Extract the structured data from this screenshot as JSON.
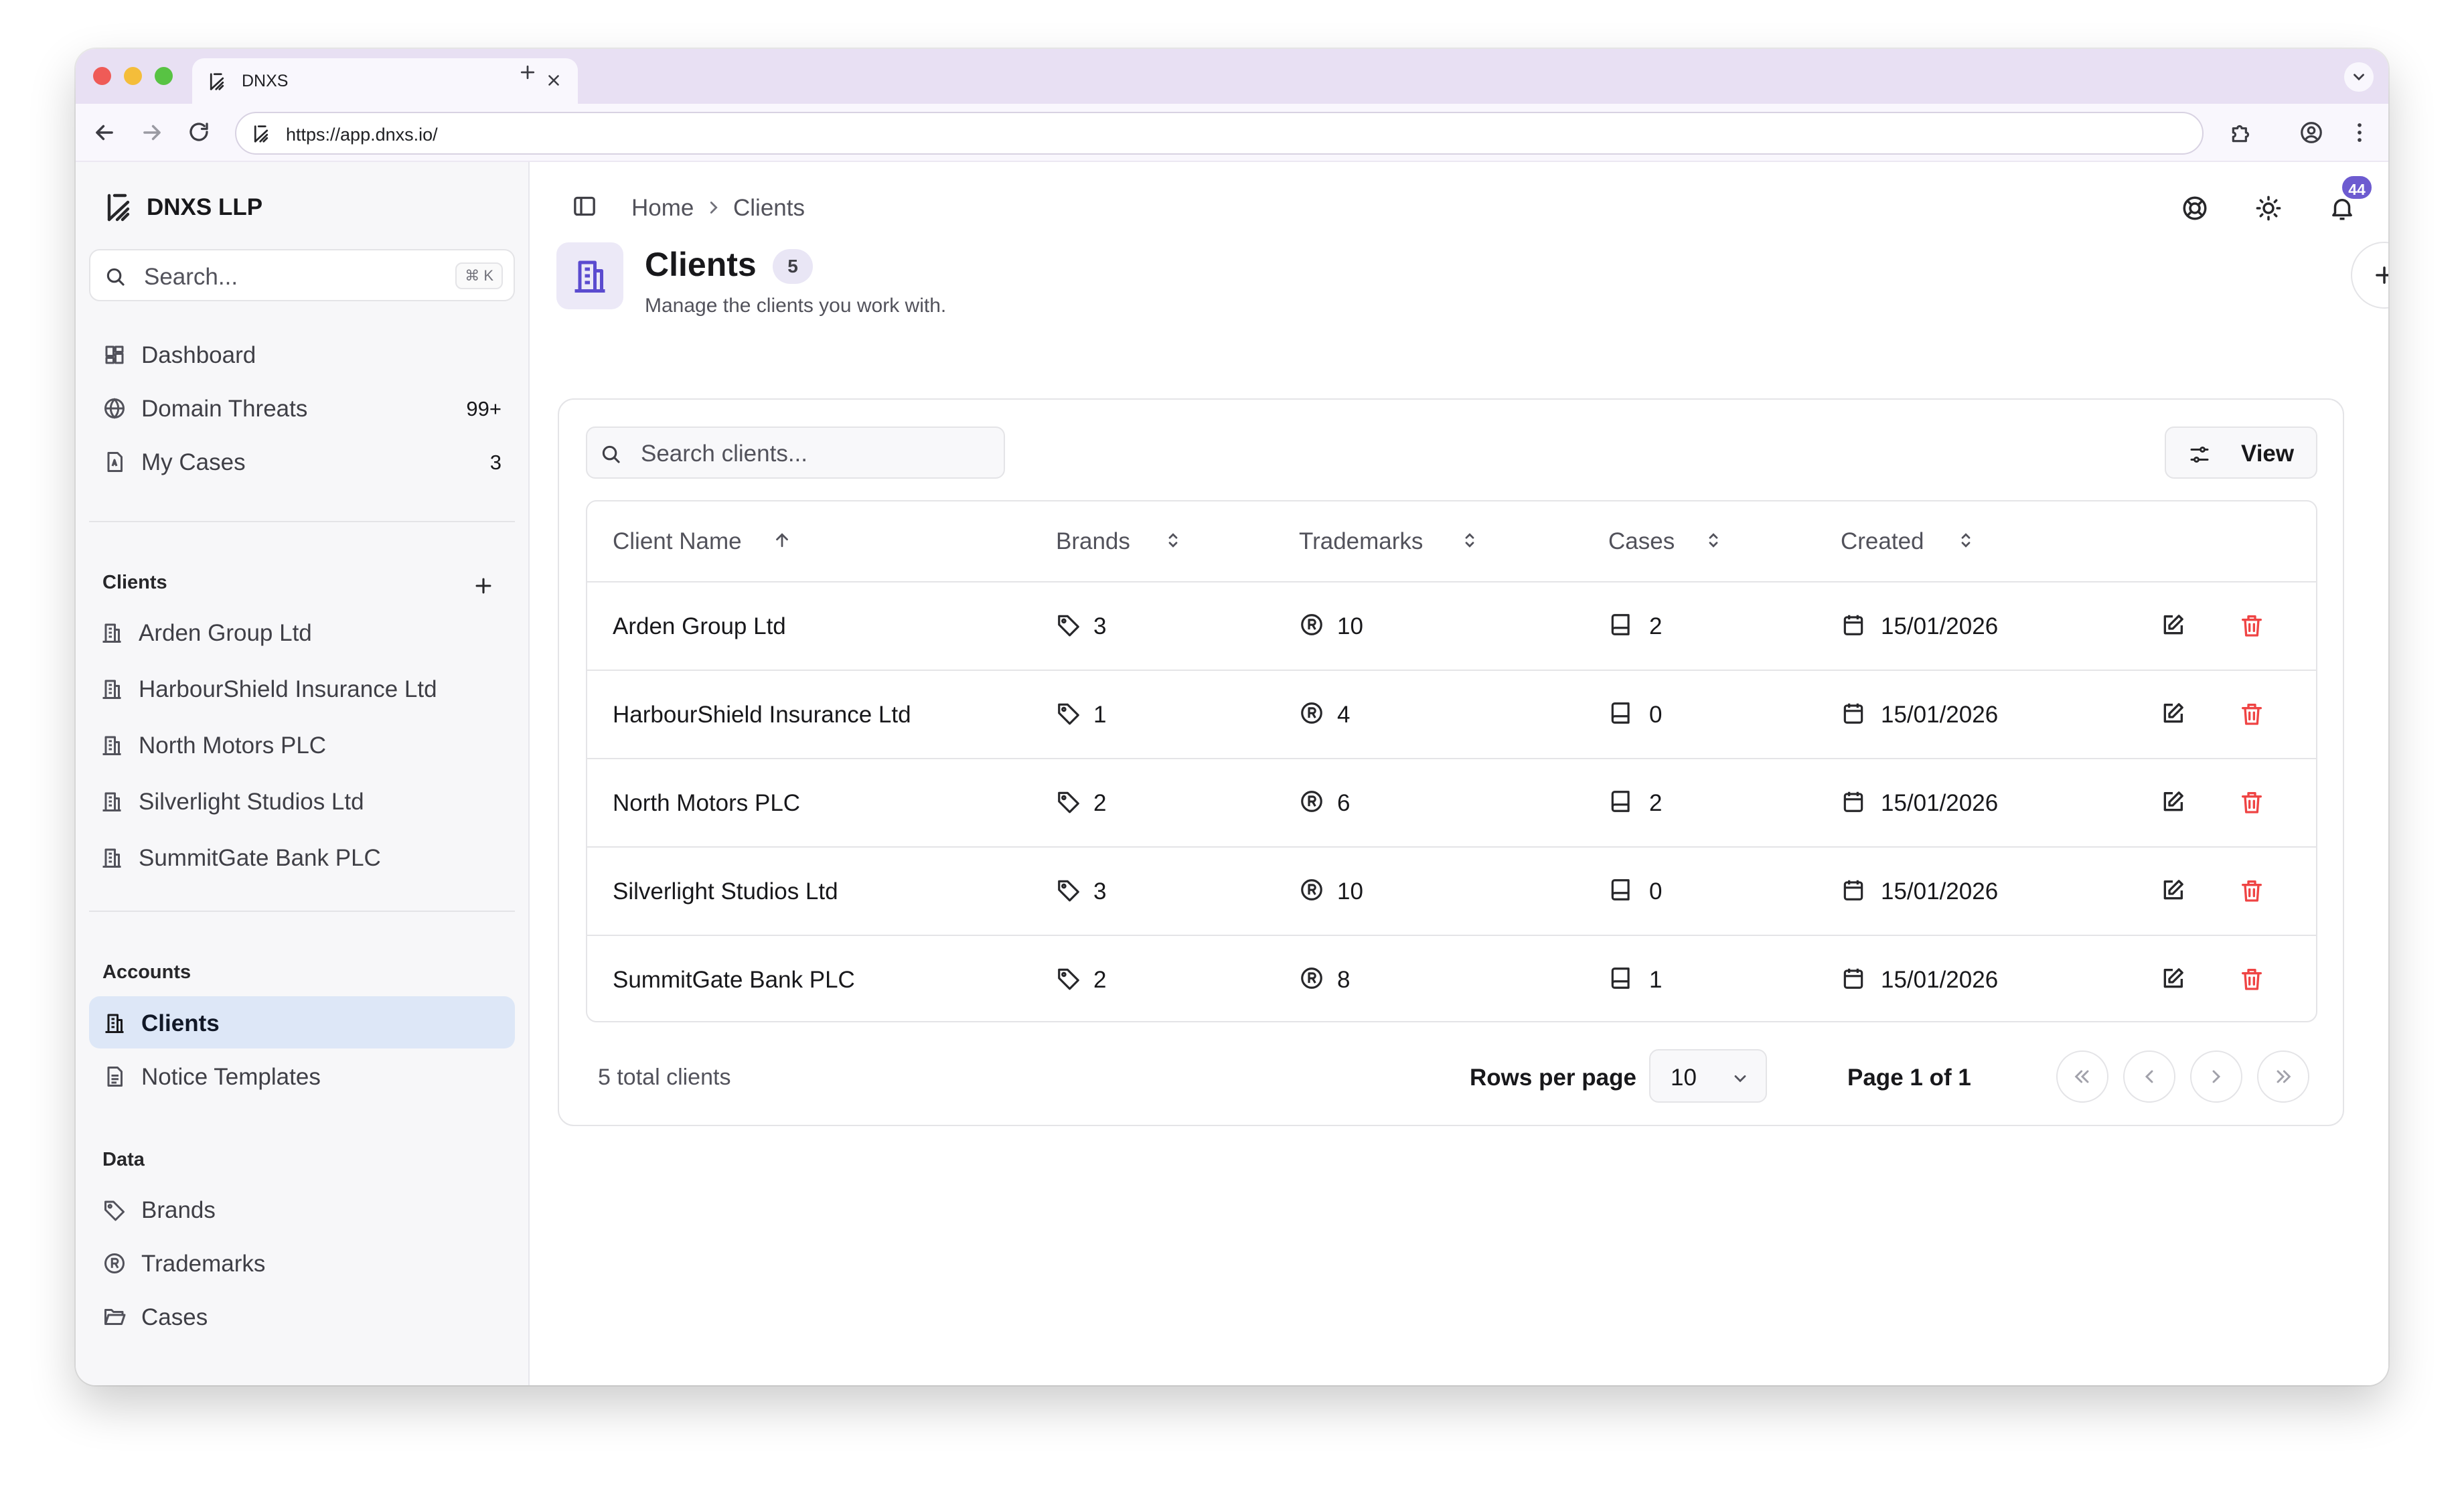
{
  "browser": {
    "tab_title": "DNXS",
    "url": "https://app.dnxs.io/"
  },
  "sidebar": {
    "org_name": "DNXS LLP",
    "search_placeholder": "Search...",
    "search_shortcut": "⌘ K",
    "nav": [
      {
        "label": "Dashboard",
        "icon": "dashboard-icon",
        "count": ""
      },
      {
        "label": "Domain Threats",
        "icon": "globe-icon",
        "count": "99+"
      },
      {
        "label": "My Cases",
        "icon": "case-file-icon",
        "count": "3"
      }
    ],
    "clients_heading": "Clients",
    "clients": [
      "Arden Group Ltd",
      "HarbourShield Insurance Ltd",
      "North Motors PLC",
      "Silverlight Studios Ltd",
      "SummitGate Bank PLC"
    ],
    "accounts_heading": "Accounts",
    "accounts": [
      {
        "label": "Clients",
        "icon": "building-icon",
        "active": true
      },
      {
        "label": "Notice Templates",
        "icon": "document-icon",
        "active": false
      }
    ],
    "data_heading": "Data",
    "data_items": [
      {
        "label": "Brands",
        "icon": "tag-icon"
      },
      {
        "label": "Trademarks",
        "icon": "registered-icon"
      },
      {
        "label": "Cases",
        "icon": "folder-icon"
      }
    ]
  },
  "breadcrumb": {
    "home": "Home",
    "current": "Clients"
  },
  "notifications": {
    "count": "44"
  },
  "page": {
    "title": "Clients",
    "count": "5",
    "subtitle": "Manage the clients you work with."
  },
  "toolbar": {
    "search_placeholder": "Search clients...",
    "view_label": "View"
  },
  "table": {
    "columns": [
      "Client Name",
      "Brands",
      "Trademarks",
      "Cases",
      "Created"
    ],
    "rows": [
      {
        "name": "Arden Group Ltd",
        "brands": "3",
        "trademarks": "10",
        "cases": "2",
        "created": "15/01/2026"
      },
      {
        "name": "HarbourShield Insurance Ltd",
        "brands": "1",
        "trademarks": "4",
        "cases": "0",
        "created": "15/01/2026"
      },
      {
        "name": "North Motors PLC",
        "brands": "2",
        "trademarks": "6",
        "cases": "2",
        "created": "15/01/2026"
      },
      {
        "name": "Silverlight Studios Ltd",
        "brands": "3",
        "trademarks": "10",
        "cases": "0",
        "created": "15/01/2026"
      },
      {
        "name": "SummitGate Bank PLC",
        "brands": "2",
        "trademarks": "8",
        "cases": "1",
        "created": "15/01/2026"
      }
    ]
  },
  "pagination": {
    "total_label": "5 total clients",
    "rows_per_page_label": "Rows per page",
    "rows_per_page_value": "10",
    "page_info": "Page 1 of 1"
  },
  "colors": {
    "accent": "#6d5bd0",
    "active_nav_bg": "#dde7f7",
    "delete_red": "#ef4444",
    "tabbar_bg": "#e8e0f3"
  }
}
